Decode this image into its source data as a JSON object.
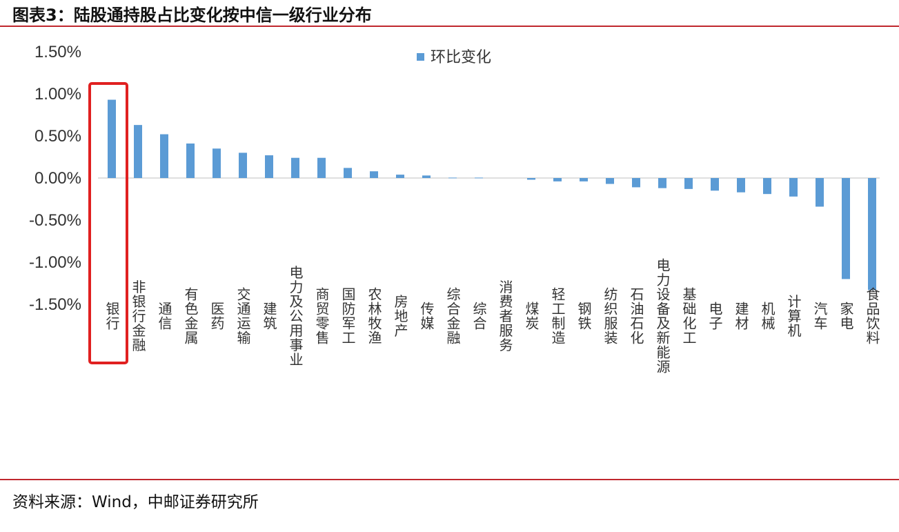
{
  "header": {
    "title": "图表3：陆股通持股占比变化按中信一级行业分布"
  },
  "footer": {
    "source": "资料来源：Wind，中邮证券研究所"
  },
  "colors": {
    "bar": "#5b9bd5",
    "rule": "#c0272d",
    "highlight": "#e02020"
  },
  "chart_data": {
    "type": "bar",
    "title": "",
    "xlabel": "",
    "ylabel": "",
    "ylim": [
      -1.5,
      1.5
    ],
    "yticks": [
      "1.50%",
      "1.00%",
      "0.50%",
      "0.00%",
      "-0.50%",
      "-1.00%",
      "-1.50%"
    ],
    "ytick_values": [
      1.5,
      1.0,
      0.5,
      0.0,
      -0.5,
      -1.0,
      -1.5
    ],
    "legend": {
      "entries": [
        "环比变化"
      ],
      "placement": "top-center"
    },
    "grid": false,
    "highlighted_category": "银行",
    "categories": [
      "银行",
      "非银行金融",
      "通信",
      "有色金属",
      "医药",
      "交通运输",
      "建筑",
      "电力及公用事业",
      "商贸零售",
      "国防军工",
      "农林牧渔",
      "房地产",
      "传媒",
      "综合金融",
      "综合",
      "消费者服务",
      "煤炭",
      "轻工制造",
      "钢铁",
      "纺织服装",
      "石油石化",
      "电力设备及新能源",
      "基础化工",
      "电子",
      "建材",
      "机械",
      "计算机",
      "汽车",
      "家电",
      "食品饮料"
    ],
    "series": [
      {
        "name": "环比变化",
        "values": [
          0.93,
          0.63,
          0.52,
          0.41,
          0.35,
          0.3,
          0.27,
          0.24,
          0.24,
          0.12,
          0.08,
          0.04,
          0.03,
          0.005,
          0.005,
          0.0,
          -0.02,
          -0.04,
          -0.04,
          -0.07,
          -0.11,
          -0.12,
          -0.13,
          -0.15,
          -0.17,
          -0.19,
          -0.22,
          -0.34,
          -1.2,
          -1.33
        ]
      }
    ]
  }
}
